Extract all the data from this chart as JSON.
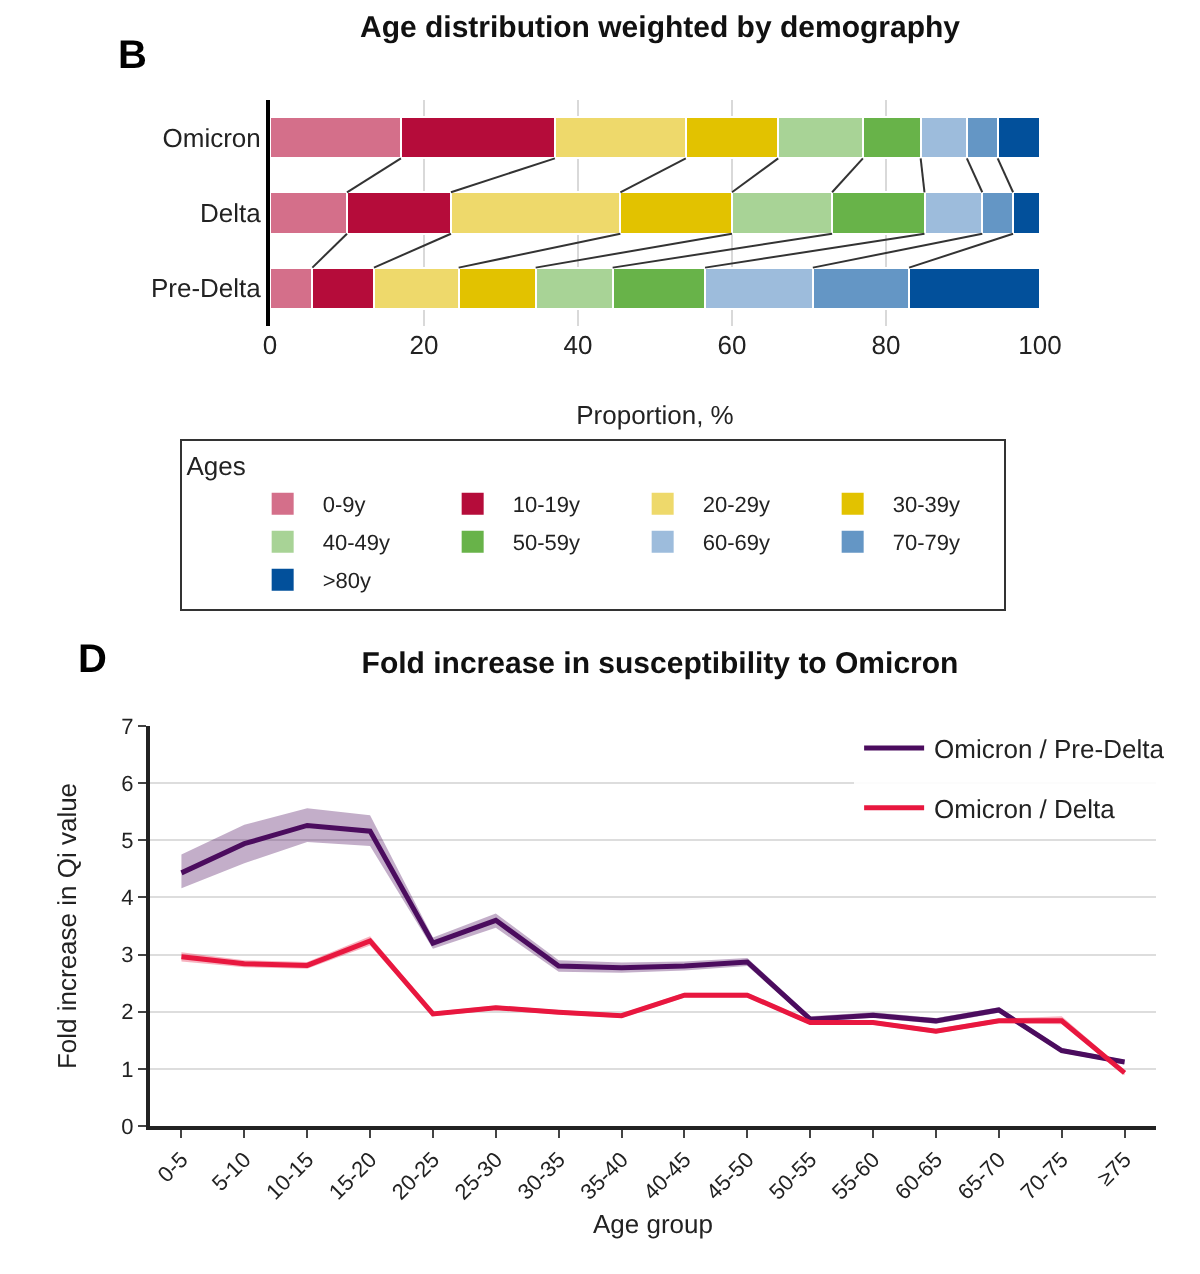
{
  "chart_data": [
    {
      "type": "bar",
      "title": "Age distribution weighted by demography",
      "xlabel": "Proportion, %",
      "annotations": [
        "B"
      ],
      "categories": [
        "Omicron",
        "Delta",
        "Pre-Delta"
      ],
      "stacked": true,
      "orientation": "horizontal",
      "xlim": [
        0,
        100
      ],
      "xticks": [
        0,
        20,
        40,
        60,
        80,
        100
      ],
      "grid": "x",
      "legend": "bottom",
      "legend_title": "Ages",
      "series": [
        {
          "name": "0-9y",
          "color": "#d46f8a",
          "values": [
            17,
            10,
            5.5
          ]
        },
        {
          "name": "10-19y",
          "color": "#b50c3a",
          "values": [
            20,
            13.5,
            8
          ]
        },
        {
          "name": "20-29y",
          "color": "#eed96b",
          "values": [
            17,
            22,
            11
          ]
        },
        {
          "name": "30-39y",
          "color": "#e2c200",
          "values": [
            12,
            14.5,
            10
          ]
        },
        {
          "name": "40-49y",
          "color": "#a8d396",
          "values": [
            11,
            13,
            10
          ]
        },
        {
          "name": "50-59y",
          "color": "#68b349",
          "values": [
            7.5,
            12,
            12
          ]
        },
        {
          "name": "60-69y",
          "color": "#9dbcdc",
          "values": [
            6,
            7.5,
            14
          ]
        },
        {
          "name": "70-79y",
          "color": "#6496c5",
          "values": [
            4,
            4,
            12.5
          ]
        },
        {
          "name": ">80y",
          "color": "#02509b",
          "values": [
            5.5,
            3.5,
            17
          ]
        }
      ]
    },
    {
      "type": "line",
      "title": "Fold increase in susceptibility to Omicron",
      "xlabel": "Age group",
      "ylabel": "Fold increase in Qi value",
      "annotations": [
        "D"
      ],
      "categories": [
        "0-5",
        "5-10",
        "10-15",
        "15-20",
        "20-25",
        "25-30",
        "30-35",
        "35-40",
        "40-45",
        "45-50",
        "50-55",
        "55-60",
        "60-65",
        "65-70",
        "70-75",
        "≥75"
      ],
      "ylim": [
        0,
        7
      ],
      "yticks": [
        0,
        1,
        2,
        3,
        4,
        5,
        6,
        7
      ],
      "grid": "y",
      "legend": "top right",
      "series": [
        {
          "name": "Omicron / Pre-Delta",
          "color": "#4b0c5e",
          "values": [
            4.43,
            4.94,
            5.26,
            5.16,
            3.2,
            3.6,
            2.8,
            2.77,
            2.8,
            2.87,
            1.87,
            1.94,
            1.84,
            2.03,
            1.32,
            1.12
          ],
          "lower": [
            4.16,
            4.6,
            4.97,
            4.9,
            3.1,
            3.47,
            2.7,
            2.68,
            2.72,
            2.8,
            1.82,
            1.89,
            1.79,
            1.98,
            1.28,
            1.08
          ],
          "upper": [
            4.75,
            5.27,
            5.56,
            5.44,
            3.3,
            3.72,
            2.9,
            2.86,
            2.88,
            2.94,
            1.92,
            1.99,
            1.89,
            2.08,
            1.36,
            1.16
          ]
        },
        {
          "name": "Omicron / Delta",
          "color": "#e8173f",
          "values": [
            2.96,
            2.84,
            2.81,
            3.24,
            1.96,
            2.07,
            1.99,
            1.93,
            2.29,
            2.29,
            1.81,
            1.81,
            1.66,
            1.84,
            1.84,
            0.93
          ],
          "lower": [
            2.88,
            2.78,
            2.75,
            3.16,
            1.92,
            2.03,
            1.95,
            1.89,
            2.25,
            2.25,
            1.77,
            1.77,
            1.62,
            1.8,
            1.78,
            0.89
          ],
          "upper": [
            3.04,
            2.9,
            2.87,
            3.32,
            2.0,
            2.11,
            2.03,
            1.97,
            2.33,
            2.33,
            1.85,
            1.85,
            1.7,
            1.88,
            1.92,
            0.97
          ]
        }
      ]
    }
  ]
}
